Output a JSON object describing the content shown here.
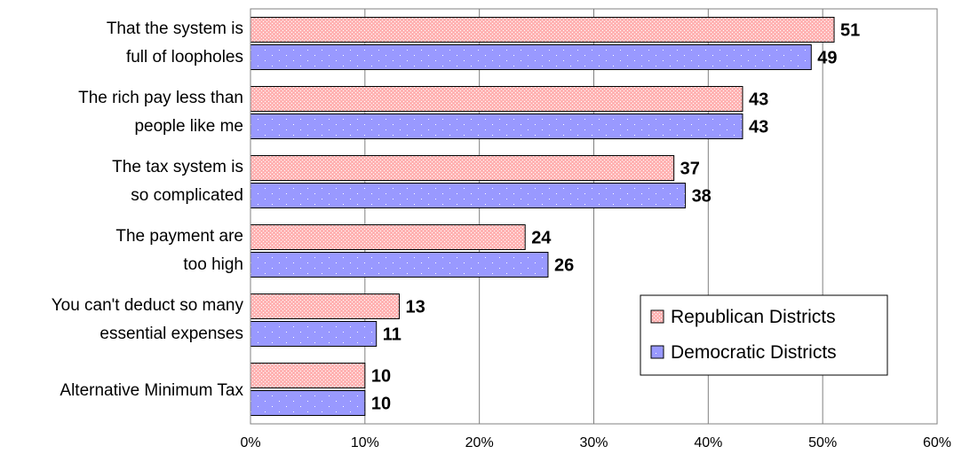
{
  "chart_data": {
    "type": "bar",
    "orientation": "horizontal",
    "categories": [
      [
        "That the system is",
        "full of loopholes"
      ],
      [
        "The rich pay less than",
        "people like me"
      ],
      [
        "The tax system is",
        "so complicated"
      ],
      [
        "The payment are",
        "too high"
      ],
      [
        "You can't deduct so many",
        "essential expenses"
      ],
      [
        "Alternative Minimum Tax"
      ]
    ],
    "series": [
      {
        "name": "Republican Districts",
        "values": [
          51,
          43,
          37,
          24,
          13,
          10
        ],
        "color": "#ffb3b3",
        "pattern": "dense-dots"
      },
      {
        "name": "Democratic Districts",
        "values": [
          49,
          43,
          38,
          26,
          11,
          10
        ],
        "color": "#9999ff",
        "pattern": "sparse-dots"
      }
    ],
    "x_ticks": [
      "0%",
      "10%",
      "20%",
      "30%",
      "40%",
      "50%",
      "60%"
    ],
    "xlim": [
      0,
      60
    ],
    "grid": "vertical",
    "legend_position": "bottom-right",
    "data_labels": true
  }
}
